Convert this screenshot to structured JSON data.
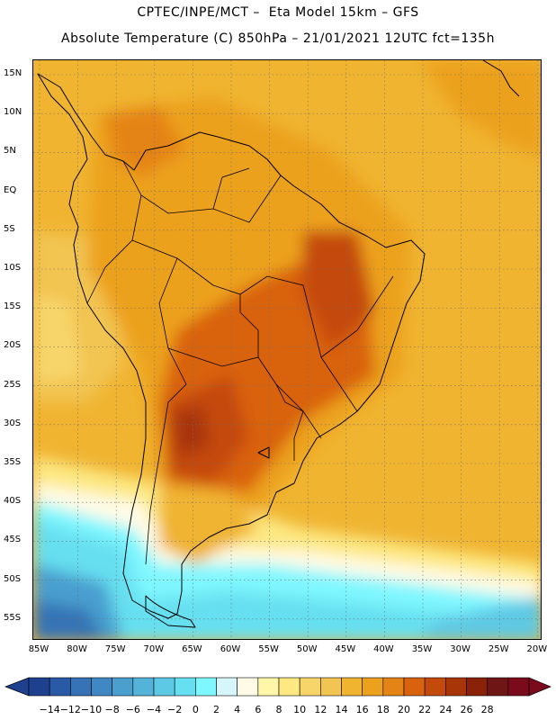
{
  "header": {
    "line1": "CPTEC/INPE/MCT –  Eta Model 15km – GFS",
    "line2": "Absolute Temperature (C) 850hPa – 21/01/2021 12UTC fct=135h"
  },
  "axes": {
    "lat_labels": [
      "15N",
      "10N",
      "5N",
      "EQ",
      "5S",
      "10S",
      "15S",
      "20S",
      "25S",
      "30S",
      "35S",
      "40S",
      "45S",
      "50S",
      "55S"
    ],
    "lon_labels": [
      "85W",
      "80W",
      "75W",
      "70W",
      "65W",
      "60W",
      "55W",
      "50W",
      "45W",
      "40W",
      "35W",
      "30W",
      "25W",
      "20W"
    ],
    "gridlines": "dotted"
  },
  "colorbar": {
    "labels": [
      "-14",
      "-12",
      "-10",
      "-8",
      "-6",
      "-4",
      "-2",
      "0",
      "2",
      "4",
      "6",
      "8",
      "10",
      "12",
      "14",
      "16",
      "18",
      "20",
      "22",
      "24",
      "26",
      "28"
    ],
    "colors": [
      "#1f3f8f",
      "#2a5aa6",
      "#3673b6",
      "#3f88c4",
      "#4a9fcf",
      "#55b3da",
      "#5ec9e4",
      "#66dff0",
      "#7ff7ff",
      "#d6f6fb",
      "#fffbe6",
      "#fff6a8",
      "#fde882",
      "#f8d56a",
      "#f2c451",
      "#f0b431",
      "#eca11d",
      "#e58416",
      "#d9620f",
      "#c44a0b",
      "#a83508",
      "#8a2207",
      "#6e1616",
      "#7a0a1c"
    ]
  },
  "map": {
    "ocean_color": "#f0b431",
    "icon": "south-america-outline"
  }
}
